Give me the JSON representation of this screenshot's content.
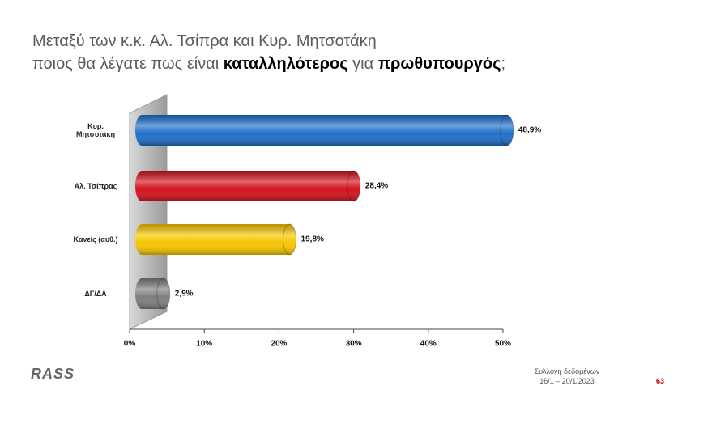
{
  "chart_data": {
    "type": "bar",
    "title": {
      "line1": "Μεταξύ των κ.κ. Αλ. Τσίπρα και Κυρ. Μητσοτάκη",
      "line2": [
        "ποιος θα λέγατε πως είναι ",
        "καταλληλότερος",
        " για ",
        "πρωθυπουργός",
        ";"
      ]
    },
    "categories": [
      "Κυρ. Μητσοτάκη",
      "Αλ. Τσίπρας",
      "Κανείς (αυθ.)",
      "ΔΓ/ΔΑ"
    ],
    "values": [
      48.9,
      28.4,
      19.8,
      2.9
    ],
    "value_labels": [
      "48,9%",
      "28,4%",
      "19,8%",
      "2,9%"
    ],
    "colors": [
      "#1f6fc8",
      "#d3121c",
      "#f7c600",
      "#7f7f7f"
    ],
    "xlim": [
      0,
      50
    ],
    "xticks": [
      {
        "value": 0,
        "label": "0%"
      },
      {
        "value": 10,
        "label": "10%"
      },
      {
        "value": 20,
        "label": "20%"
      },
      {
        "value": 30,
        "label": "30%"
      },
      {
        "value": 40,
        "label": "40%"
      },
      {
        "value": 50,
        "label": "50%"
      }
    ]
  },
  "footer": {
    "logo": "RASS",
    "collection_label": "Συλλογή δεδομένων",
    "collection_dates": "16/1 – 20/1/2023",
    "page_number": "63"
  }
}
